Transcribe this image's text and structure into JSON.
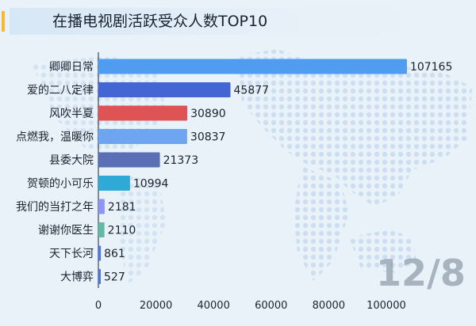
{
  "title": "在播电视剧活跃受众人数TOP10",
  "date_label": "12/8",
  "colors": {
    "title_accent": "#f5b82e",
    "axis": "#1a2230"
  },
  "chart_data": {
    "type": "bar",
    "orientation": "horizontal",
    "title": "在播电视剧活跃受众人数TOP10",
    "categories": [
      "卿卿日常",
      "爱的二八定律",
      "风吹半夏",
      "点燃我，温暖你",
      "县委大院",
      "贺顿的小可乐",
      "我们的当打之年",
      "谢谢你医生",
      "天下长河",
      "大博弈"
    ],
    "values": [
      107165,
      45877,
      30890,
      30837,
      21373,
      10994,
      2181,
      2110,
      861,
      527
    ],
    "bar_colors": [
      "#4f9cf0",
      "#4466d4",
      "#de5454",
      "#6fa4f0",
      "#5a6fb5",
      "#2fa9d6",
      "#8d96f5",
      "#64b8a8",
      "#4d76e6",
      "#4d76e6"
    ],
    "xlim": [
      0,
      116000
    ],
    "xticks": [
      0,
      20000,
      40000,
      60000,
      80000,
      100000
    ],
    "grid": false,
    "legend": "none"
  }
}
